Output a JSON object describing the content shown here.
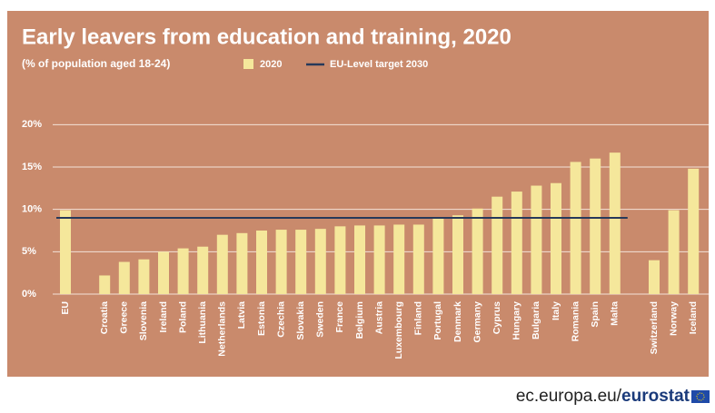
{
  "chart_data": {
    "type": "bar",
    "title": "Early leavers from education and training, 2020",
    "subtitle": "(% of population aged 18-24)",
    "categories": [
      "EU",
      "Croatia",
      "Greece",
      "Slovenia",
      "Ireland",
      "Poland",
      "Lithuania",
      "Netherlands",
      "Latvia",
      "Estonia",
      "Czechia",
      "Slovakia",
      "Sweden",
      "France",
      "Belgium",
      "Austria",
      "Luxembourg",
      "Finland",
      "Portugal",
      "Denmark",
      "Germany",
      "Cyprus",
      "Hungary",
      "Bulgaria",
      "Italy",
      "Romania",
      "Spain",
      "Malta",
      "Switzerland",
      "Norway",
      "Iceland"
    ],
    "series": [
      {
        "name": "2020",
        "color": "#f5e79b",
        "values": [
          9.9,
          2.2,
          3.8,
          4.1,
          5.0,
          5.4,
          5.6,
          7.0,
          7.2,
          7.5,
          7.6,
          7.6,
          7.7,
          8.0,
          8.1,
          8.1,
          8.2,
          8.2,
          8.9,
          9.3,
          10.1,
          11.5,
          12.1,
          12.8,
          13.1,
          15.6,
          16.0,
          16.7,
          4.0,
          9.9,
          14.8
        ]
      }
    ],
    "target": {
      "name": "EU-Level target 2030",
      "value": 9,
      "color": "#27395a"
    },
    "ylim": [
      0,
      21
    ],
    "yticks": [
      {
        "value": 0,
        "label": "0%"
      },
      {
        "value": 5,
        "label": "5%"
      },
      {
        "value": 10,
        "label": "10%"
      },
      {
        "value": 15,
        "label": "15%"
      },
      {
        "value": 20,
        "label": "20%"
      }
    ],
    "grid": true
  },
  "footer": {
    "domain": "ec.europa.eu/",
    "brand": "eurostat"
  }
}
